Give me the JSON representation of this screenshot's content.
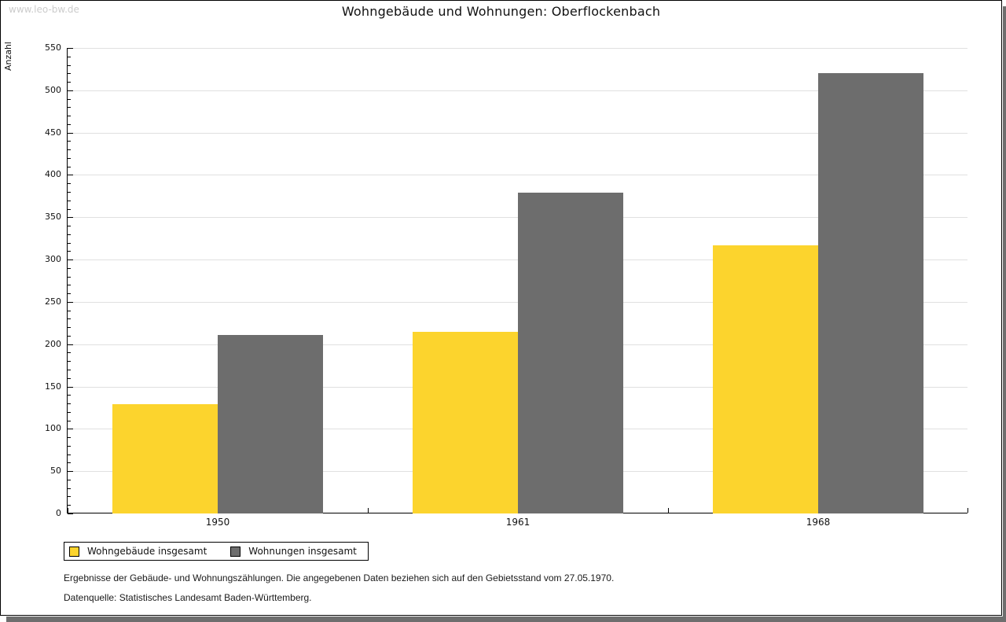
{
  "window": {
    "watermark": "www.leo-bw.de"
  },
  "title": "Wohngebäude und Wohnungen: Oberflockenbach",
  "chart_data": {
    "type": "bar",
    "categories": [
      "1950",
      "1961",
      "1968"
    ],
    "series": [
      {
        "name": "Wohngebäude insgesamt",
        "color": "#fcd42d",
        "values": [
          129,
          215,
          317
        ]
      },
      {
        "name": "Wohnungen insgesamt",
        "color": "#6d6d6d",
        "values": [
          211,
          379,
          520
        ]
      }
    ],
    "title": "Wohngebäude und Wohnungen: Oberflockenbach",
    "xlabel": "",
    "ylabel": "Anzahl",
    "ylim": [
      0,
      550
    ],
    "ytick_step": 50,
    "minor_tick_step": 10,
    "grid": true,
    "legend_position": "bottom-left"
  },
  "footnotes": {
    "line1": "Ergebnisse der Gebäude- und Wohnungszählungen. Die angegebenen Daten beziehen sich auf den Gebietsstand vom 27.05.1970.",
    "line2": "Datenquelle: Statistisches Landesamt Baden-Württemberg."
  },
  "colors": {
    "bar_yellow": "#fcd42d",
    "bar_gray": "#6d6d6d",
    "gridline": "#e0e0e0",
    "axis": "#000000",
    "watermark": "#cccccc",
    "shadow": "#6e6e6e"
  }
}
